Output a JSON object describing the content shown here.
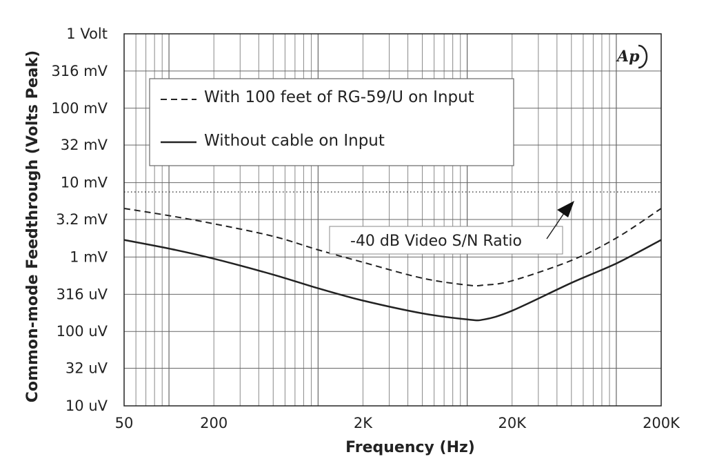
{
  "chart_data": {
    "type": "line",
    "xlabel": "Frequency (Hz)",
    "ylabel": "Common-mode Feedthrough (Volts Peak)",
    "x_scale": "log",
    "y_scale": "log",
    "xlim": [
      50,
      200000
    ],
    "ylim": [
      1e-05,
      1
    ],
    "grid": true,
    "legend_position": "top-left",
    "x_ticks": [
      {
        "value": 50,
        "label": "50"
      },
      {
        "value": 200,
        "label": "200"
      },
      {
        "value": 2000,
        "label": "2K"
      },
      {
        "value": 20000,
        "label": "20K"
      },
      {
        "value": 200000,
        "label": "200K"
      }
    ],
    "y_ticks": [
      {
        "value": 1,
        "label": "1 Volt"
      },
      {
        "value": 0.316,
        "label": "316 mV"
      },
      {
        "value": 0.1,
        "label": "100 mV"
      },
      {
        "value": 0.032,
        "label": "32 mV"
      },
      {
        "value": 0.01,
        "label": "10 mV"
      },
      {
        "value": 0.0032,
        "label": "3.2 mV"
      },
      {
        "value": 0.001,
        "label": "1 mV"
      },
      {
        "value": 0.000316,
        "label": "316 uV"
      },
      {
        "value": 0.0001,
        "label": "100 uV"
      },
      {
        "value": 3.2e-05,
        "label": "32 uV"
      },
      {
        "value": 1e-05,
        "label": "10 uV"
      }
    ],
    "series": [
      {
        "name": "With 100 feet of RG-59/U on Input",
        "style": "dashed",
        "x": [
          50,
          100,
          200,
          500,
          1000,
          2000,
          5000,
          10000,
          13000,
          20000,
          50000,
          100000,
          200000
        ],
        "y": [
          0.0045,
          0.0036,
          0.0028,
          0.0019,
          0.00125,
          0.00085,
          0.00052,
          0.00042,
          0.00042,
          0.00048,
          0.0009,
          0.0018,
          0.0045
        ]
      },
      {
        "name": "Without cable on Input",
        "style": "solid",
        "x": [
          50,
          100,
          200,
          500,
          1000,
          2000,
          5000,
          10000,
          13000,
          20000,
          50000,
          100000,
          200000
        ],
        "y": [
          0.0017,
          0.0013,
          0.00095,
          0.00058,
          0.00038,
          0.00026,
          0.000175,
          0.000145,
          0.000145,
          0.00019,
          0.00045,
          0.00082,
          0.0017
        ]
      },
      {
        "style": "dotted",
        "x": [
          50,
          200000
        ],
        "y": [
          0.0075,
          0.0075
        ]
      }
    ],
    "annotations": [
      {
        "text": "-40 dB Video S/N Ratio",
        "points_to_y": 0.0075
      }
    ],
    "logo_text": "Ap"
  }
}
